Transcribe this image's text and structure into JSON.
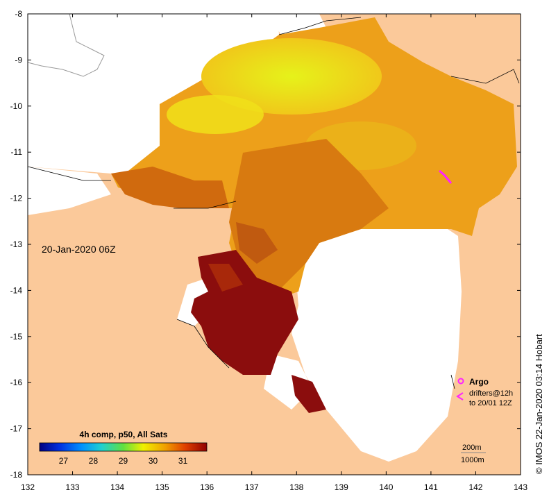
{
  "map": {
    "date_label": "20-Jan-2020 06Z",
    "x_ticks": [
      "132",
      "133",
      "134",
      "135",
      "136",
      "137",
      "138",
      "139",
      "140",
      "141",
      "142",
      "143"
    ],
    "y_ticks": [
      "-8",
      "-9",
      "-10",
      "-11",
      "-12",
      "-13",
      "-14",
      "-15",
      "-16",
      "-17",
      "-18"
    ],
    "credit": "© IMOS 22-Jan-2020 03:14 Hobart",
    "colorbar": {
      "title": "4h comp, p50, All Sats",
      "ticks": [
        "27",
        "28",
        "29",
        "30",
        "31"
      ],
      "min": 26.2,
      "max": 31.8
    },
    "legend": {
      "argo_label": "Argo",
      "drifter_label": "drifters@12h",
      "drifter_time": "to 20/01 12Z"
    },
    "depth_labels": {
      "contour_200": "200m",
      "contour_1000": "1000m"
    },
    "colors": {
      "land": "#fbc99a",
      "nodata": "#ffffff",
      "marker": "#ff22ff",
      "warm": "#8b0d0d",
      "hot": "#a8280a",
      "orange": "#d87a10",
      "amber": "#eda01a",
      "yellow": "#f0e01a",
      "lime": "#dcf21a"
    }
  }
}
